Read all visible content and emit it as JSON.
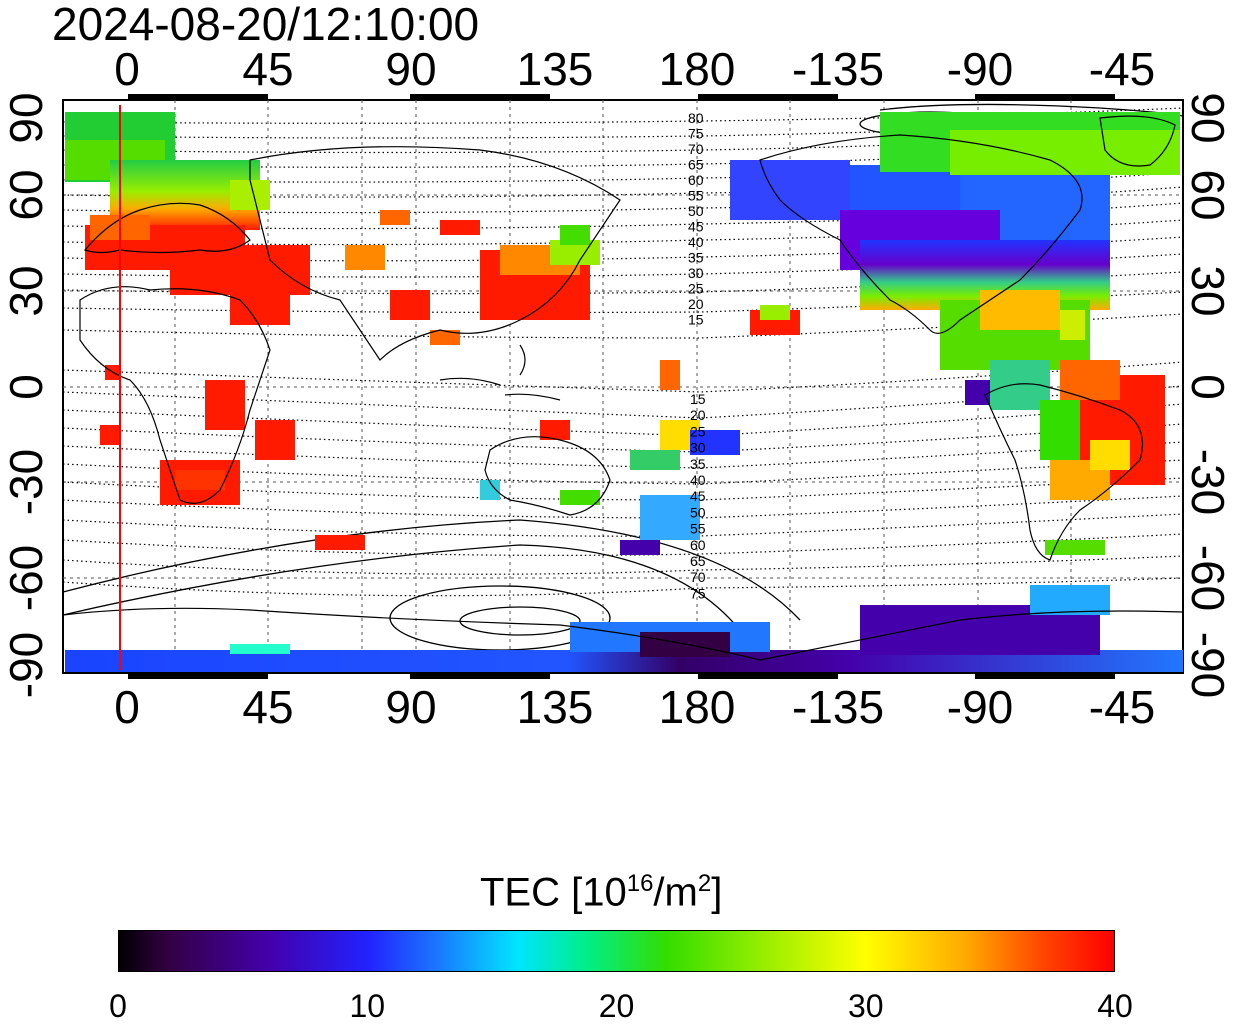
{
  "title": "2024-08-20/12:10:00",
  "top_axis_ticks": [
    "0",
    "45",
    "90",
    "135",
    "180",
    "-135",
    "-90",
    "-45"
  ],
  "bottom_axis_ticks": [
    "0",
    "45",
    "90",
    "135",
    "180",
    "-135",
    "-90",
    "-45"
  ],
  "left_axis_ticks": [
    "90",
    "60",
    "30",
    "0",
    "-30",
    "-60",
    "-90"
  ],
  "right_axis_ticks": [
    "90",
    "60",
    "30",
    "0",
    "-30",
    "-60",
    "-90"
  ],
  "contour_labels_north": [
    "80",
    "75",
    "70",
    "65",
    "60",
    "55",
    "50",
    "45",
    "40",
    "35",
    "30",
    "25",
    "20",
    "15"
  ],
  "contour_labels_south": [
    "15",
    "20",
    "25",
    "30",
    "35",
    "40",
    "45",
    "50",
    "55",
    "60",
    "65",
    "70",
    "75"
  ],
  "colorbar": {
    "title_prefix": "TEC  [10",
    "title_exp": "16",
    "title_mid": "/m",
    "title_exp2": "2",
    "title_suffix": "]",
    "labels": [
      "0",
      "10",
      "20",
      "30",
      "40"
    ],
    "min": 0,
    "max": 40
  },
  "colors": {
    "terminator_line": "#ff0000",
    "high_tec": "#ff1a00",
    "mid_tec": "#33dd00",
    "low_tec": "#1a33ff"
  }
}
